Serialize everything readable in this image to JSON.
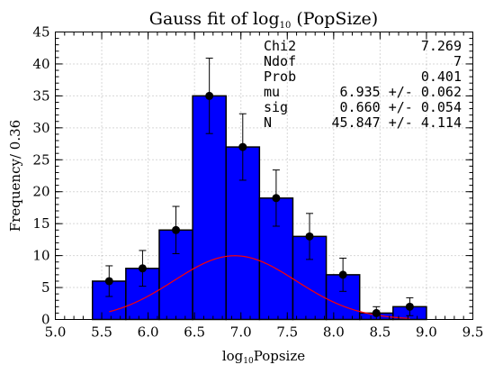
{
  "chart_data": {
    "type": "bar",
    "title": {
      "pre": "Gauss fit of log",
      "sub": "10",
      "post": " (PopSize)"
    },
    "xlabel": {
      "pre": "log",
      "sub": "10",
      "post": "Popsize"
    },
    "ylabel": "Frequency/ 0.36",
    "xlim": [
      5.0,
      9.5
    ],
    "ylim": [
      0,
      45
    ],
    "xticks": [
      "5.0",
      "5.5",
      "6.0",
      "6.5",
      "7.0",
      "7.5",
      "8.0",
      "8.5",
      "9.0",
      "9.5"
    ],
    "yticks": [
      "0",
      "5",
      "10",
      "15",
      "20",
      "25",
      "30",
      "35",
      "40",
      "45"
    ],
    "grid": true,
    "bin_width": 0.36,
    "bin_edges": [
      5.4,
      5.76,
      6.12,
      6.48,
      6.84,
      7.2,
      7.56,
      7.92,
      8.28,
      8.64,
      9.0
    ],
    "bar_color": "#0000ff",
    "bars": [
      6,
      8,
      14,
      35,
      27,
      19,
      13,
      7,
      1,
      2
    ],
    "points": [
      {
        "x": 5.58,
        "y": 6,
        "err": 2.4
      },
      {
        "x": 5.94,
        "y": 8,
        "err": 2.8
      },
      {
        "x": 6.3,
        "y": 14,
        "err": 3.7
      },
      {
        "x": 6.66,
        "y": 35,
        "err": 5.9
      },
      {
        "x": 7.02,
        "y": 27,
        "err": 5.2
      },
      {
        "x": 7.38,
        "y": 19,
        "err": 4.4
      },
      {
        "x": 7.74,
        "y": 13,
        "err": 3.6
      },
      {
        "x": 8.1,
        "y": 7,
        "err": 2.6
      },
      {
        "x": 8.46,
        "y": 1,
        "err": 1.0
      },
      {
        "x": 8.82,
        "y": 2,
        "err": 1.4
      }
    ],
    "fit": {
      "color": "#ff0000",
      "mu": 6.935,
      "sigma": 0.66,
      "N": 45.847,
      "x_range": [
        5.58,
        8.82
      ]
    },
    "stats": [
      {
        "label": "Chi2",
        "value": "7.269"
      },
      {
        "label": "Ndof",
        "value": "7"
      },
      {
        "label": "Prob",
        "value": "0.401"
      },
      {
        "label": "mu",
        "value": "6.935 +/- 0.062"
      },
      {
        "label": "sig",
        "value": "0.660 +/- 0.054"
      },
      {
        "label": "N",
        "value": "45.847 +/- 4.114"
      }
    ]
  }
}
